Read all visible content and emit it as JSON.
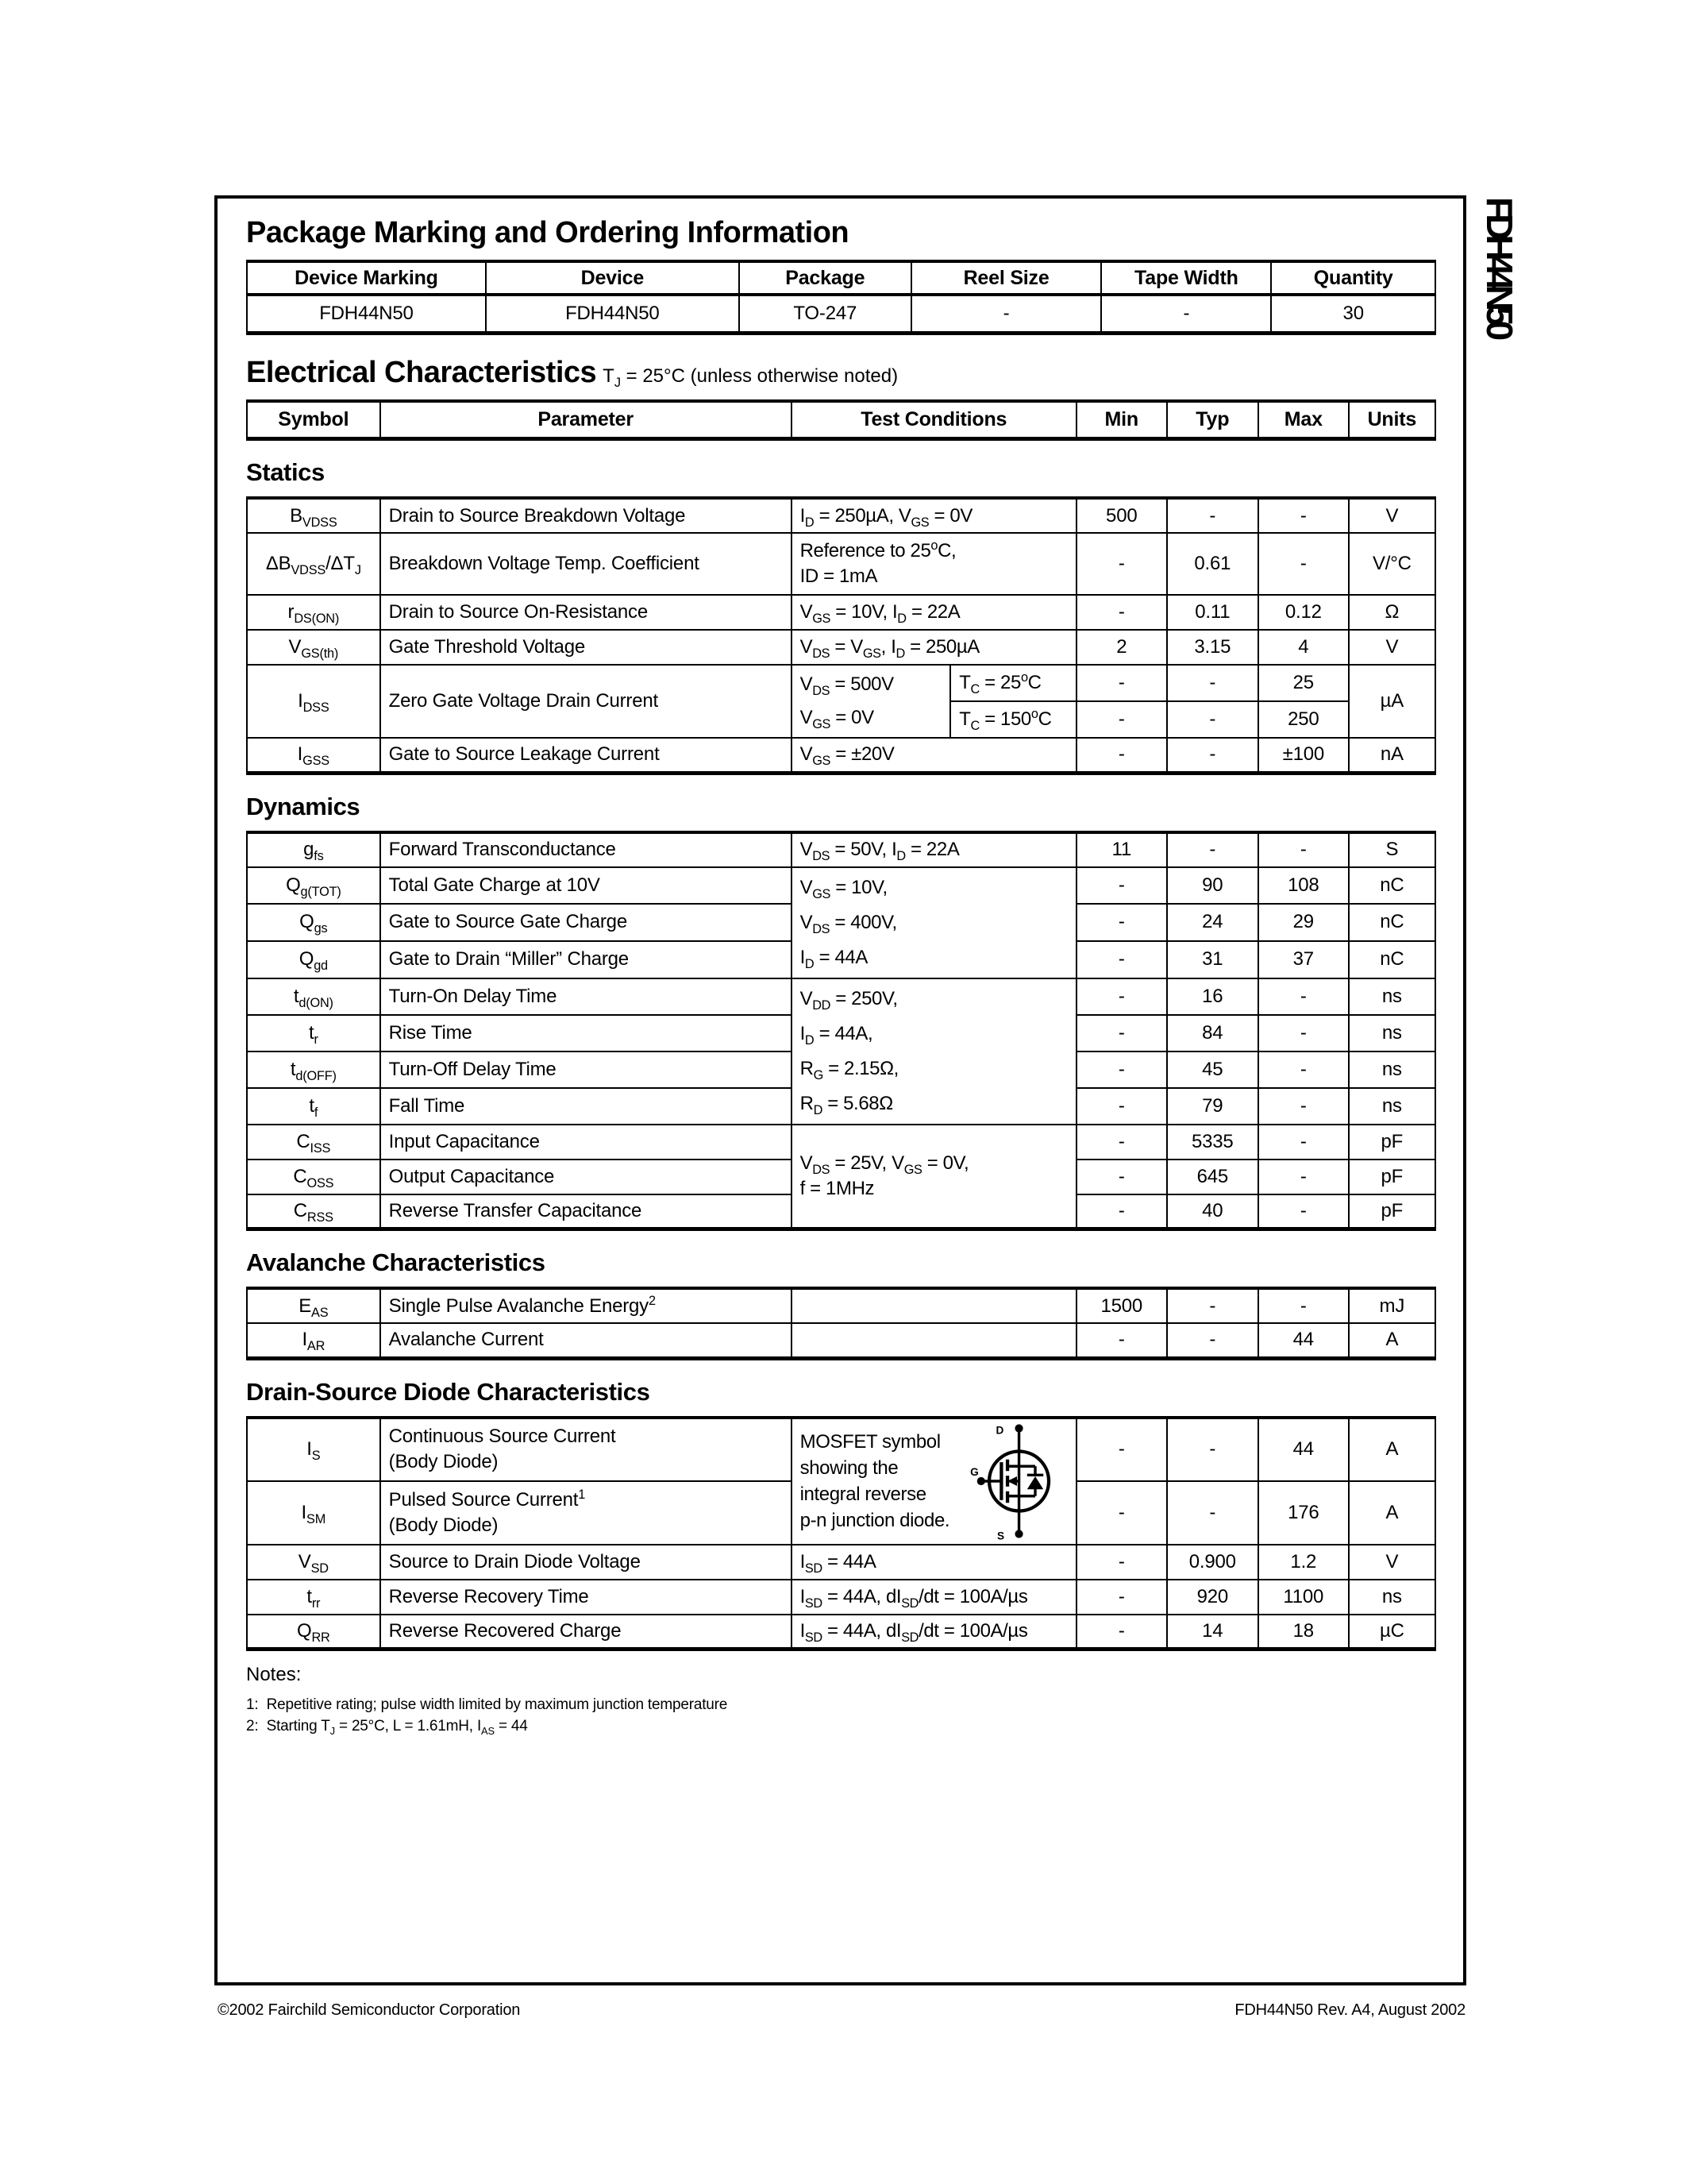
{
  "page": {
    "side_label": "FDH44N50",
    "footer_left": "©2002 Fairchild Semiconductor Corporation",
    "footer_right": "FDH44N50 Rev. A4, August 2002"
  },
  "ordering": {
    "title": "Package Marking and Ordering Information",
    "headers": [
      "Device Marking",
      "Device",
      "Package",
      "Reel Size",
      "Tape Width",
      "Quantity"
    ],
    "row": [
      "FDH44N50",
      "FDH44N50",
      "TO-247",
      "-",
      "-",
      "30"
    ]
  },
  "electrical": {
    "title": "Electrical Characteristics",
    "subtitle": "T_{J} = 25°C (unless otherwise noted)",
    "headers": [
      "Symbol",
      "Parameter",
      "Test Conditions",
      "Min",
      "Typ",
      "Max",
      "Units"
    ]
  },
  "statics": {
    "title": "Statics",
    "rows": {
      "bvdss": {
        "sym": "B_{VDSS}",
        "param": "Drain to Source Breakdown Voltage",
        "cond": "I_{D} = 250µA, V_{GS} = 0V",
        "min": "500",
        "typ": "-",
        "max": "-",
        "units": "V"
      },
      "dbvdss": {
        "sym": "ΔB_{VDSS}/ΔT_{J}",
        "param": "Breakdown Voltage Temp. Coefficient",
        "cond1": "Reference to 25^{o}C,",
        "cond2": "ID = 1mA",
        "min": "-",
        "typ": "0.61",
        "max": "-",
        "units": "V/°C"
      },
      "rdson": {
        "sym": "r_{DS(ON)}",
        "param": "Drain to Source On-Resistance",
        "cond": "V_{GS} = 10V, I_{D} = 22A",
        "min": "-",
        "typ": "0.11",
        "max": "0.12",
        "units": "Ω"
      },
      "vgsth": {
        "sym": "V_{GS(th)}",
        "param": "Gate Threshold Voltage",
        "cond": "V_{DS} = V_{GS}, I_{D} = 250µA",
        "min": "2",
        "typ": "3.15",
        "max": "4",
        "units": "V"
      },
      "idss": {
        "sym": "I_{DSS}",
        "param": "Zero Gate Voltage Drain Current",
        "cond1": "V_{DS} = 500V",
        "cond2": "V_{GS} = 0V",
        "tc1": "T_{C} = 25^{o}C",
        "tc2": "T_{C} = 150^{o}C",
        "min1": "-",
        "typ1": "-",
        "max1": "25",
        "min2": "-",
        "typ2": "-",
        "max2": "250",
        "units": "µA"
      },
      "igss": {
        "sym": "I_{GSS}",
        "param": "Gate to Source Leakage Current",
        "cond": "V_{GS} = ±20V",
        "min": "-",
        "typ": "-",
        "max": "±100",
        "units": "nA"
      }
    }
  },
  "dynamics": {
    "title": "Dynamics",
    "rows": {
      "gfs": {
        "sym": "g_{fs}",
        "param": "Forward Transconductance",
        "cond": "V_{DS} = 50V, I_{D} = 22A",
        "min": "11",
        "typ": "-",
        "max": "-",
        "units": "S"
      },
      "charge_cond": {
        "l1": "V_{GS} = 10V,",
        "l2": "V_{DS} = 400V,",
        "l3": "I_{D} = 44A"
      },
      "qgtot": {
        "sym": "Q_{g(TOT)}",
        "param": "Total Gate Charge at 10V",
        "min": "-",
        "typ": "90",
        "max": "108",
        "units": "nC"
      },
      "qgs": {
        "sym": "Q_{gs}",
        "param": "Gate to Source Gate Charge",
        "min": "-",
        "typ": "24",
        "max": "29",
        "units": "nC"
      },
      "qgd": {
        "sym": "Q_{gd}",
        "param": "Gate to Drain “Miller” Charge",
        "min": "-",
        "typ": "31",
        "max": "37",
        "units": "nC"
      },
      "switch_cond": {
        "l1": "V_{DD} = 250V,",
        "l2": "I_{D} = 44A,",
        "l3": "R_{G} = 2.15Ω,",
        "l4": "R_{D} = 5.68Ω"
      },
      "tdon": {
        "sym": "t_{d(ON)}",
        "param": "Turn-On Delay Time",
        "min": "-",
        "typ": "16",
        "max": "-",
        "units": "ns"
      },
      "tr": {
        "sym": "t_{r}",
        "param": "Rise Time",
        "min": "-",
        "typ": "84",
        "max": "-",
        "units": "ns"
      },
      "tdoff": {
        "sym": "t_{d(OFF)}",
        "param": "Turn-Off Delay Time",
        "min": "-",
        "typ": "45",
        "max": "-",
        "units": "ns"
      },
      "tf": {
        "sym": "t_{f}",
        "param": "Fall Time",
        "min": "-",
        "typ": "79",
        "max": "-",
        "units": "ns"
      },
      "cap_cond": {
        "l1": "V_{DS} = 25V, V_{GS} = 0V,",
        "l2": "f = 1MHz"
      },
      "ciss": {
        "sym": "C_{ISS}",
        "param": "Input Capacitance",
        "min": "-",
        "typ": "5335",
        "max": "-",
        "units": "pF"
      },
      "coss": {
        "sym": "C_{OSS}",
        "param": "Output Capacitance",
        "min": "-",
        "typ": "645",
        "max": "-",
        "units": "pF"
      },
      "crss": {
        "sym": "C_{RSS}",
        "param": "Reverse Transfer Capacitance",
        "min": "-",
        "typ": "40",
        "max": "-",
        "units": "pF"
      }
    }
  },
  "avalanche": {
    "title": "Avalanche Characteristics",
    "rows": {
      "eas": {
        "sym": "E_{AS}",
        "param": "Single Pulse Avalanche Energy^{2}",
        "min": "1500",
        "typ": "-",
        "max": "-",
        "units": "mJ"
      },
      "iar": {
        "sym": "I_{AR}",
        "param": "Avalanche Current",
        "min": "-",
        "typ": "-",
        "max": "44",
        "units": "A"
      }
    }
  },
  "diode": {
    "title": "Drain-Source Diode Characteristics",
    "symbol_note": {
      "l1": "MOSFET symbol",
      "l2": "showing the",
      "l3": "integral reverse",
      "l4": "p-n junction diode."
    },
    "symbol_labels": {
      "d": "D",
      "g": "G",
      "s": "S"
    },
    "rows": {
      "is": {
        "sym": "I_{S}",
        "p1": "Continuous Source Current",
        "p2": "(Body Diode)",
        "min": "-",
        "typ": "-",
        "max": "44",
        "units": "A"
      },
      "ism": {
        "sym": "I_{SM}",
        "p1": "Pulsed Source Current^{1}",
        "p2": "(Body Diode)",
        "min": "-",
        "typ": "-",
        "max": "176",
        "units": "A"
      },
      "vsd": {
        "sym": "V_{SD}",
        "param": "Source to Drain Diode Voltage",
        "cond": "I_{SD} = 44A",
        "min": "-",
        "typ": "0.900",
        "max": "1.2",
        "units": "V"
      },
      "trr": {
        "sym": "t_{rr}",
        "param": "Reverse Recovery Time",
        "cond": "I_{SD} = 44A, dI_{SD}/dt = 100A/µs",
        "min": "-",
        "typ": "920",
        "max": "1100",
        "units": "ns"
      },
      "qrr": {
        "sym": "Q_{RR}",
        "param": "Reverse Recovered Charge",
        "cond": "I_{SD} = 44A, dI_{SD}/dt = 100A/µs",
        "min": "-",
        "typ": "14",
        "max": "18",
        "units": "µC"
      }
    }
  },
  "notes": {
    "title": "Notes:",
    "n1": "1:  Repetitive rating; pulse width limited by maximum junction temperature",
    "n2": "2:  Starting T_{J} = 25°C, L = 1.61mH, I_{AS} = 44"
  }
}
